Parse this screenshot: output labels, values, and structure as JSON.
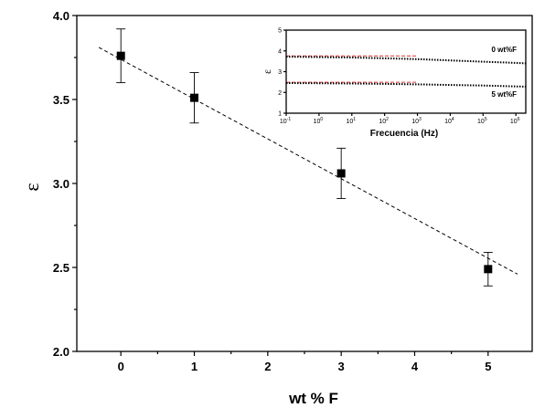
{
  "chart_data": [
    {
      "type": "scatter",
      "xlabel": "wt % F",
      "ylabel": "ε",
      "xlim": [
        -0.6,
        5.6
      ],
      "ylim": [
        2.0,
        4.0
      ],
      "x_ticks": [
        "0",
        "1",
        "2",
        "3",
        "4",
        "5"
      ],
      "y_ticks": [
        "2.0",
        "2.5",
        "3.0",
        "3.5",
        "4.0"
      ],
      "series": [
        {
          "x": [
            0,
            1,
            3,
            5
          ],
          "y": [
            3.76,
            3.51,
            3.06,
            2.49
          ],
          "error": [
            0.16,
            0.15,
            0.15,
            0.1
          ],
          "marker": "square",
          "color": "#000000"
        }
      ],
      "fit_line": {
        "x": [
          -0.3,
          5.4
        ],
        "y": [
          3.81,
          2.46
        ],
        "style": "dashed",
        "color": "#000000"
      }
    },
    {
      "type": "line",
      "xlabel": "Frecuencia (Hz)",
      "ylabel": "ε",
      "x_scale": "log",
      "xlim": [
        0.1,
        2000000
      ],
      "ylim": [
        1,
        5
      ],
      "x_tick_exponents": [
        "-1",
        "0",
        "1",
        "2",
        "3",
        "4",
        "5",
        "6"
      ],
      "y_ticks": [
        "1",
        "2",
        "3",
        "4",
        "5"
      ],
      "annotations": [
        "0 wt%F",
        "5 wt%F"
      ],
      "series": [
        {
          "label": "0 wt%F",
          "x": [
            0.1,
            1,
            10,
            100,
            1000,
            10000,
            100000,
            1000000,
            2000000
          ],
          "y": [
            3.72,
            3.7,
            3.68,
            3.64,
            3.6,
            3.54,
            3.48,
            3.42,
            3.4
          ],
          "color": "#000000",
          "style": "dotted"
        },
        {
          "label": "5 wt%F",
          "x": [
            0.1,
            1,
            10,
            100,
            1000,
            10000,
            100000,
            1000000,
            2000000
          ],
          "y": [
            2.45,
            2.44,
            2.43,
            2.41,
            2.39,
            2.36,
            2.33,
            2.29,
            2.28
          ],
          "color": "#000000",
          "style": "dotted"
        }
      ],
      "reference_lines": [
        {
          "x": [
            0.1,
            1000
          ],
          "y": [
            3.76,
            3.76
          ],
          "color": "#e03030",
          "style": "dashed"
        },
        {
          "x": [
            0.1,
            1000
          ],
          "y": [
            2.49,
            2.49
          ],
          "color": "#e03030",
          "style": "dashed"
        }
      ]
    }
  ]
}
